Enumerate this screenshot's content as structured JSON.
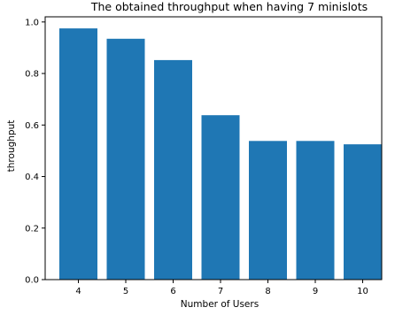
{
  "chart_data": {
    "type": "bar",
    "title": "The obtained throughput when having 7 minislots",
    "xlabel": "Number of Users",
    "ylabel": "throughput",
    "categories": [
      "4",
      "5",
      "6",
      "7",
      "8",
      "9",
      "10"
    ],
    "values": [
      0.975,
      0.935,
      0.852,
      0.638,
      0.538,
      0.538,
      0.525
    ],
    "ylim": [
      0,
      1.02
    ],
    "yticks": [
      "0.0",
      "0.2",
      "0.4",
      "0.6",
      "0.8",
      "1.0"
    ],
    "grid": false,
    "bar_color": "#1f77b4"
  }
}
